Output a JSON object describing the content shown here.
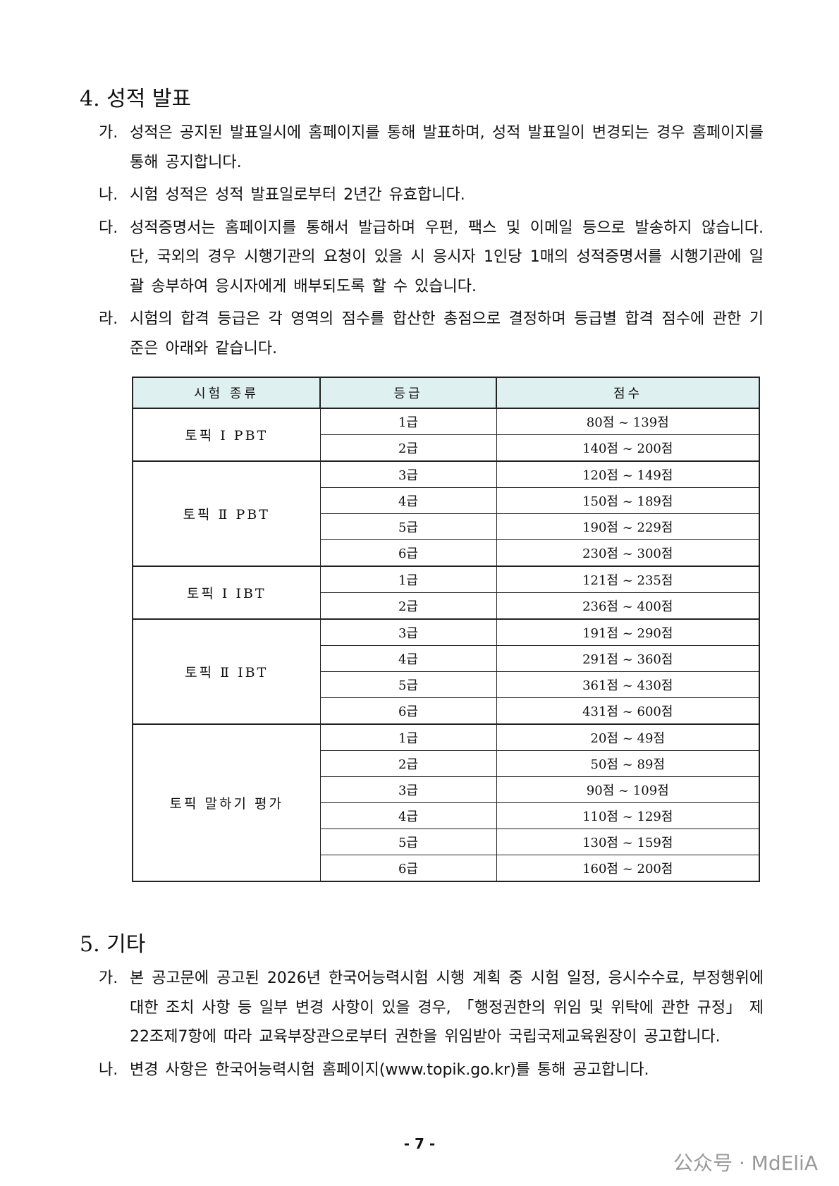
{
  "section_4": {
    "heading": "4. 성적 발표",
    "items": [
      {
        "marker": "가.",
        "text": "성적은 공지된 발표일시에 홈페이지를 통해 발표하며, 성적 발표일이 변경되는 경우 홈페이지를 통해 공지합니다."
      },
      {
        "marker": "나.",
        "text": "시험 성적은 성적 발표일로부터 2년간 유효합니다."
      },
      {
        "marker": "다.",
        "text": "성적증명서는 홈페이지를 통해서 발급하며 우편, 팩스 및 이메일 등으로 발송하지 않습니다. 단, 국외의 경우 시행기관의 요청이 있을 시 응시자 1인당 1매의 성적증명서를 시행기관에 일괄 송부하여 응시자에게 배부되도록 할 수 있습니다."
      },
      {
        "marker": "라.",
        "text": "시험의 합격 등급은 각 영역의 점수를 합산한 총점으로 결정하며 등급별 합격 점수에 관한 기준은 아래와 같습니다."
      }
    ]
  },
  "table": {
    "header": [
      "시험 종류",
      "등급",
      "점수"
    ],
    "groups": [
      {
        "name": "토픽 Ⅰ PBT",
        "rows": [
          [
            "1급",
            "80점 ~ 139점"
          ],
          [
            "2급",
            "140점 ~ 200점"
          ]
        ]
      },
      {
        "name": "토픽 Ⅱ PBT",
        "rows": [
          [
            "3급",
            "120점 ~ 149점"
          ],
          [
            "4급",
            "150점 ~ 189점"
          ],
          [
            "5급",
            "190점 ~ 229점"
          ],
          [
            "6급",
            "230점 ~ 300점"
          ]
        ]
      },
      {
        "name": "토픽 Ⅰ IBT",
        "rows": [
          [
            "1급",
            "121점 ~ 235점"
          ],
          [
            "2급",
            "236점 ~ 400점"
          ]
        ]
      },
      {
        "name": "토픽 Ⅱ IBT",
        "rows": [
          [
            "3급",
            "191점 ~ 290점"
          ],
          [
            "4급",
            "291점 ~ 360점"
          ],
          [
            "5급",
            "361점 ~ 430점"
          ],
          [
            "6급",
            "431점 ~ 600점"
          ]
        ]
      },
      {
        "name": "토픽 말하기 평가",
        "rows": [
          [
            "1급",
            "20점 ~ 49점"
          ],
          [
            "2급",
            "50점 ~ 89점"
          ],
          [
            "3급",
            "90점 ~ 109점"
          ],
          [
            "4급",
            "110점 ~ 129점"
          ],
          [
            "5급",
            "130점 ~ 159점"
          ],
          [
            "6급",
            "160점 ~ 200점"
          ]
        ]
      }
    ]
  },
  "section_5": {
    "heading": "5. 기타",
    "items": [
      {
        "marker": "가.",
        "text": "본 공고문에 공고된 2026년 한국어능력시험 시행 계획 중 시험 일정, 응시수수료, 부정행위에 대한 조치 사항 등 일부 변경 사항이 있을 경우, 「행정권한의 위임 및 위탁에 관한 규정」 제22조제7항에 따라 교육부장관으로부터 권한을 위임받아 국립국제교육원장이 공고합니다."
      },
      {
        "marker": "나.",
        "text": "변경 사항은 한국어능력시험 홈페이지(www.topik.go.kr)를 통해 공고합니다."
      }
    ]
  },
  "page_number": "- 7 -",
  "watermark": "公众号 · MdEliA"
}
